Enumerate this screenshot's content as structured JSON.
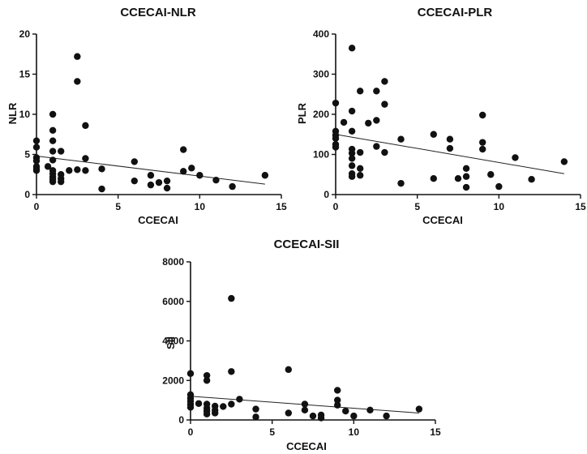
{
  "chart_data": [
    {
      "type": "scatter",
      "title": "CCECAI-NLR",
      "xlabel": "CCECAI",
      "ylabel": "NLR",
      "xlim": [
        0,
        15
      ],
      "ylim": [
        0,
        20
      ],
      "xticks": [
        0,
        5,
        10,
        15
      ],
      "yticks": [
        0,
        5,
        10,
        15,
        20
      ],
      "regression": {
        "x": [
          0,
          14
        ],
        "y": [
          4.8,
          1.3
        ]
      },
      "points": [
        [
          0,
          6.7
        ],
        [
          0,
          5.9
        ],
        [
          0,
          4.6
        ],
        [
          0,
          4.2
        ],
        [
          0,
          3.5
        ],
        [
          0,
          3.2
        ],
        [
          0,
          3.0
        ],
        [
          0.7,
          3.5
        ],
        [
          1,
          10.0
        ],
        [
          1,
          8.0
        ],
        [
          1,
          6.7
        ],
        [
          1,
          5.4
        ],
        [
          1,
          4.3
        ],
        [
          1,
          3.0
        ],
        [
          1,
          2.6
        ],
        [
          1,
          2.2
        ],
        [
          1,
          1.9
        ],
        [
          1,
          1.6
        ],
        [
          1.5,
          5.4
        ],
        [
          1.5,
          2.5
        ],
        [
          1.5,
          2.0
        ],
        [
          1.5,
          1.6
        ],
        [
          2,
          3.0
        ],
        [
          2.5,
          17.2
        ],
        [
          2.5,
          14.1
        ],
        [
          2.5,
          3.1
        ],
        [
          3,
          8.6
        ],
        [
          3,
          4.5
        ],
        [
          3,
          3.0
        ],
        [
          4,
          3.2
        ],
        [
          4,
          0.7
        ],
        [
          6,
          4.1
        ],
        [
          6,
          1.7
        ],
        [
          7,
          2.4
        ],
        [
          7,
          1.2
        ],
        [
          7.5,
          1.5
        ],
        [
          8,
          1.7
        ],
        [
          8,
          0.8
        ],
        [
          9,
          5.6
        ],
        [
          9,
          2.9
        ],
        [
          9.5,
          3.3
        ],
        [
          10,
          2.4
        ],
        [
          11,
          1.8
        ],
        [
          12,
          1.0
        ],
        [
          14,
          2.4
        ]
      ]
    },
    {
      "type": "scatter",
      "title": "CCECAI-PLR",
      "xlabel": "CCECAI",
      "ylabel": "PLR",
      "xlim": [
        0,
        15
      ],
      "ylim": [
        0,
        400
      ],
      "xticks": [
        0,
        5,
        10,
        15
      ],
      "yticks": [
        0,
        100,
        200,
        300,
        400
      ],
      "regression": {
        "x": [
          0,
          14
        ],
        "y": [
          150,
          52
        ]
      },
      "points": [
        [
          0,
          228
        ],
        [
          0,
          158
        ],
        [
          0,
          148
        ],
        [
          0,
          140
        ],
        [
          0,
          125
        ],
        [
          0,
          118
        ],
        [
          0.5,
          180
        ],
        [
          1,
          365
        ],
        [
          1,
          208
        ],
        [
          1,
          158
        ],
        [
          1,
          113
        ],
        [
          1,
          103
        ],
        [
          1,
          90
        ],
        [
          1,
          72
        ],
        [
          1,
          52
        ],
        [
          1,
          45
        ],
        [
          1.5,
          258
        ],
        [
          1.5,
          105
        ],
        [
          1.5,
          65
        ],
        [
          1.5,
          48
        ],
        [
          2,
          178
        ],
        [
          2.5,
          258
        ],
        [
          2.5,
          185
        ],
        [
          2.5,
          120
        ],
        [
          3,
          282
        ],
        [
          3,
          225
        ],
        [
          3,
          105
        ],
        [
          4,
          138
        ],
        [
          4,
          28
        ],
        [
          6,
          150
        ],
        [
          6,
          40
        ],
        [
          7,
          138
        ],
        [
          7,
          115
        ],
        [
          7.5,
          40
        ],
        [
          8,
          65
        ],
        [
          8,
          45
        ],
        [
          8,
          18
        ],
        [
          9,
          198
        ],
        [
          9,
          130
        ],
        [
          9,
          113
        ],
        [
          9.5,
          50
        ],
        [
          10,
          20
        ],
        [
          11,
          92
        ],
        [
          12,
          38
        ],
        [
          14,
          82
        ]
      ]
    },
    {
      "type": "scatter",
      "title": "CCECAI-SII",
      "xlabel": "CCECAI",
      "ylabel": "SII",
      "xlim": [
        0,
        15
      ],
      "ylim": [
        0,
        8000
      ],
      "xticks": [
        0,
        5,
        10,
        15
      ],
      "yticks": [
        0,
        2000,
        4000,
        6000,
        8000
      ],
      "regression": {
        "x": [
          0,
          14
        ],
        "y": [
          1200,
          350
        ]
      },
      "points": [
        [
          0,
          2350
        ],
        [
          0,
          1280
        ],
        [
          0,
          1100
        ],
        [
          0,
          950
        ],
        [
          0,
          780
        ],
        [
          0,
          640
        ],
        [
          0.5,
          830
        ],
        [
          1,
          2250
        ],
        [
          1,
          2000
        ],
        [
          1,
          800
        ],
        [
          1,
          600
        ],
        [
          1,
          450
        ],
        [
          1,
          300
        ],
        [
          1.5,
          700
        ],
        [
          1.5,
          500
        ],
        [
          1.5,
          350
        ],
        [
          2,
          680
        ],
        [
          2.5,
          6150
        ],
        [
          2.5,
          2450
        ],
        [
          2.5,
          800
        ],
        [
          3,
          1050
        ],
        [
          4,
          550
        ],
        [
          4,
          150
        ],
        [
          6,
          2550
        ],
        [
          6,
          350
        ],
        [
          7,
          800
        ],
        [
          7,
          500
        ],
        [
          7.5,
          200
        ],
        [
          8,
          250
        ],
        [
          8,
          100
        ],
        [
          9,
          1500
        ],
        [
          9,
          1000
        ],
        [
          9,
          750
        ],
        [
          9.5,
          450
        ],
        [
          10,
          200
        ],
        [
          11,
          500
        ],
        [
          12,
          200
        ],
        [
          14,
          550
        ]
      ]
    }
  ]
}
